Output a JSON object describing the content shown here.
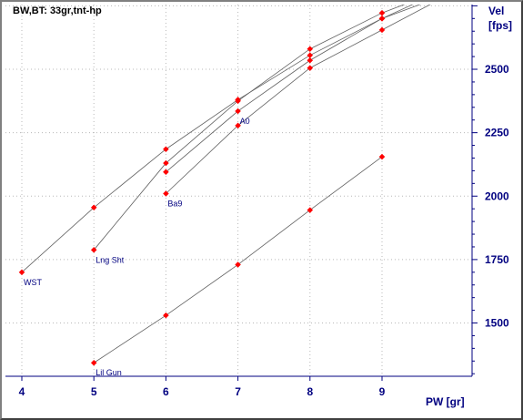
{
  "chart_data": {
    "type": "scatter",
    "title": "BW,BT:  33gr,tnt-hp",
    "xlabel": "PW [gr]",
    "ylabel_line1": "Vel",
    "ylabel_line2": "[fps]",
    "xlim": [
      4,
      9.75
    ],
    "ylim": [
      1290,
      2755
    ],
    "x_ticks": [
      4,
      5,
      6,
      7,
      8,
      9
    ],
    "y_ticks": [
      1500,
      1750,
      2000,
      2250,
      2500
    ],
    "y_minor_step": 50,
    "grid": "dotted",
    "colors": {
      "axis": "#000080",
      "grid": "#b8b8b8",
      "line": "#606060",
      "marker": "#ff0000"
    },
    "series": [
      {
        "name": "WST",
        "label_at_index": 0,
        "points": [
          [
            4,
            1700
          ],
          [
            5,
            1955
          ],
          [
            6,
            2185
          ],
          [
            7,
            2380
          ],
          [
            8,
            2555
          ],
          [
            9,
            2700
          ],
          [
            10,
            2830
          ]
        ]
      },
      {
        "name": "Lng Sht",
        "label_at_index": 0,
        "points": [
          [
            5,
            1788
          ],
          [
            6,
            2130
          ],
          [
            7,
            2375
          ],
          [
            8,
            2580
          ],
          [
            9,
            2722
          ],
          [
            10,
            2830
          ]
        ]
      },
      {
        "name": "A0",
        "label_at_index": 1,
        "points": [
          [
            6,
            2095
          ],
          [
            7,
            2335
          ],
          [
            8,
            2535
          ],
          [
            9,
            2700
          ],
          [
            10,
            2805
          ]
        ]
      },
      {
        "name": "Ba9",
        "label_at_index": 0,
        "points": [
          [
            6,
            2010
          ],
          [
            7,
            2278
          ],
          [
            8,
            2505
          ],
          [
            9,
            2655
          ],
          [
            10,
            2805
          ]
        ]
      },
      {
        "name": "Lil Gun",
        "label_at_index": 0,
        "points": [
          [
            5,
            1343
          ],
          [
            6,
            1530
          ],
          [
            7,
            1730
          ],
          [
            8,
            1945
          ],
          [
            9,
            2155
          ]
        ]
      }
    ]
  }
}
